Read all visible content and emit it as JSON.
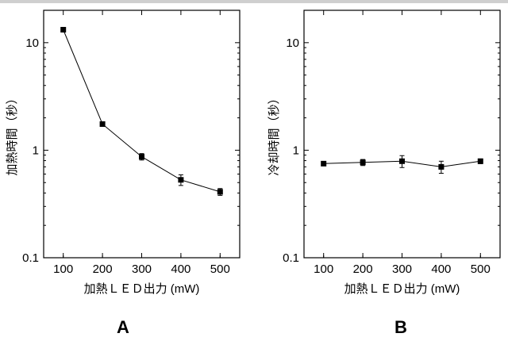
{
  "chart_data": [
    {
      "type": "line",
      "panel_label": "A",
      "xlabel": "加熱ＬＥＤ出力 (mW)",
      "ylabel": "加熱時間（秒）",
      "yscale": "log",
      "xlim": [
        50,
        550
      ],
      "ylim": [
        0.1,
        20
      ],
      "xticks": [
        100,
        200,
        300,
        400,
        500
      ],
      "yticks": [
        0.1,
        1,
        10
      ],
      "series": [
        {
          "x": [
            100,
            200,
            300,
            400,
            500
          ],
          "y": [
            13.2,
            1.75,
            0.87,
            0.53,
            0.41
          ],
          "err": [
            0,
            0.05,
            0.06,
            0.06,
            0.03
          ]
        }
      ]
    },
    {
      "type": "line",
      "panel_label": "B",
      "xlabel": "加熱ＬＥＤ出力 (mW)",
      "ylabel": "冷却時間（秒）",
      "yscale": "log",
      "xlim": [
        50,
        550
      ],
      "ylim": [
        0.1,
        20
      ],
      "xticks": [
        100,
        200,
        300,
        400,
        500
      ],
      "yticks": [
        0.1,
        1,
        10
      ],
      "series": [
        {
          "x": [
            100,
            200,
            300,
            400,
            500
          ],
          "y": [
            0.75,
            0.77,
            0.79,
            0.7,
            0.79
          ],
          "err": [
            0.02,
            0.05,
            0.1,
            0.09,
            0.04
          ]
        }
      ]
    }
  ]
}
